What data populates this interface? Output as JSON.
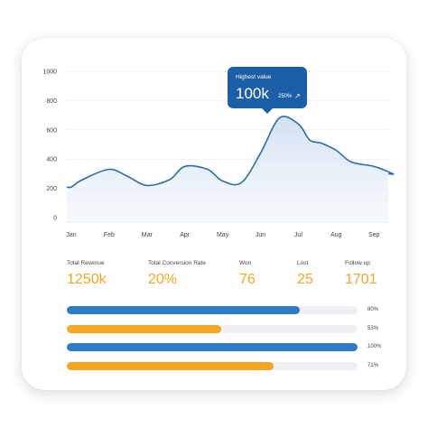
{
  "tooltip": {
    "label": "Highest value",
    "value": "100k",
    "change": "250%",
    "arrow_icon": "arrow-up-right-icon"
  },
  "chart_data": {
    "type": "area",
    "categories": [
      "Jan",
      "Feb",
      "Mar",
      "Apr",
      "May",
      "Jun",
      "Jul",
      "Aug",
      "Sep"
    ],
    "y_ticks": [
      "0",
      "200",
      "400",
      "600",
      "800",
      "1000"
    ],
    "ylim": [
      0,
      1000
    ],
    "x": [
      0,
      0.3,
      1,
      1.5,
      2,
      2.6,
      3,
      3.6,
      4,
      4.5,
      5,
      5.5,
      6,
      6.3,
      6.6,
      7,
      7.4,
      8,
      8.5
    ],
    "values": [
      210,
      260,
      330,
      280,
      220,
      260,
      350,
      330,
      250,
      240,
      440,
      680,
      640,
      530,
      510,
      460,
      380,
      350,
      300
    ],
    "title": "",
    "xlabel": "",
    "ylabel": "",
    "grid": true,
    "line_color": "#2b6cb0",
    "fill_color": "#dbe8f5"
  },
  "stats": [
    {
      "label": "Total Revenue",
      "value": "1250k"
    },
    {
      "label": "Total Conversion Rate",
      "value": "20%"
    },
    {
      "label": "Won",
      "value": "76"
    },
    {
      "label": "Lost",
      "value": "25"
    },
    {
      "label": "Follow up",
      "value": "1701"
    }
  ],
  "progress": [
    {
      "fraction": 0.8,
      "label": "80%",
      "color": "#2f7bc6"
    },
    {
      "fraction": 0.53,
      "label": "53%",
      "color": "#f5a623"
    },
    {
      "fraction": 1.0,
      "label": "100%",
      "color": "#2f7bc6"
    },
    {
      "fraction": 0.71,
      "label": "71%",
      "color": "#f5a623"
    }
  ]
}
